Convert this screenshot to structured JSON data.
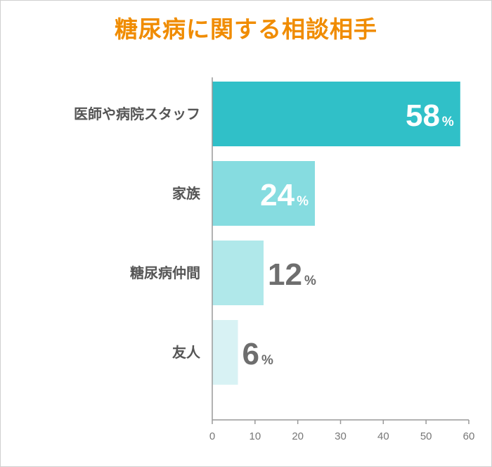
{
  "chart_data": {
    "type": "bar",
    "orientation": "horizontal",
    "title": "糖尿病に関する相談相手",
    "categories": [
      "医師や病院スタッフ",
      "家族",
      "糖尿病仲間",
      "友人"
    ],
    "values": [
      58,
      24,
      12,
      6
    ],
    "value_suffix": "%",
    "xlim": [
      0,
      60
    ],
    "x_ticks": [
      "0",
      "10",
      "20",
      "30",
      "40",
      "50",
      "60"
    ],
    "grid": false,
    "legend": "none",
    "bar_colors": [
      "#30c0c8",
      "#86dce0",
      "#b0e8ea",
      "#d8f2f4"
    ],
    "label_colors": [
      "#ffffff",
      "#ffffff",
      "#6e6e6e",
      "#6e6e6e"
    ],
    "title_color": "#f08c00",
    "category_color": "#555555",
    "axis_color": "#999999"
  }
}
